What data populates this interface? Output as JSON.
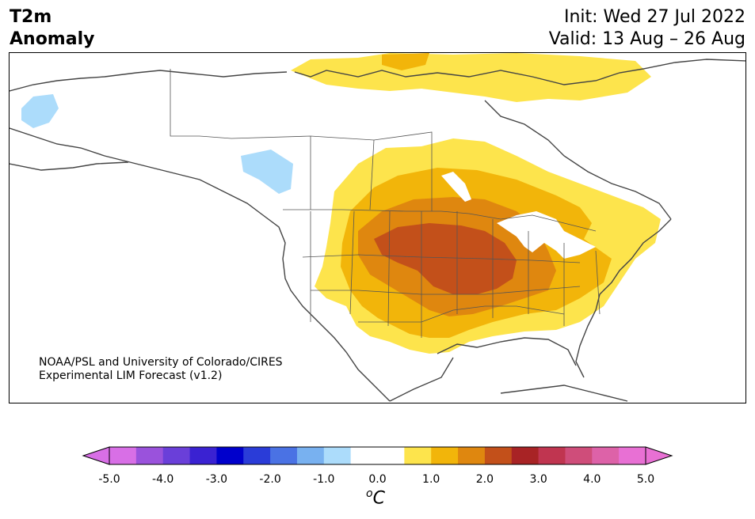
{
  "title": {
    "line1": "T2m",
    "line2": "Anomaly"
  },
  "init": "Init: Wed 27 Jul 2022",
  "valid": "Valid: 13 Aug – 26 Aug",
  "credit": {
    "line1": "NOAA/PSL and University of Colorado/CIRES",
    "line2": "Experimental LIM Forecast (v1.2)"
  },
  "colorbar": {
    "unit_sup": "o",
    "unit": "C",
    "ticks": [
      "-5.0",
      "-4.0",
      "-3.0",
      "-2.0",
      "-1.0",
      "0.0",
      "1.0",
      "2.0",
      "3.0",
      "4.0",
      "5.0"
    ],
    "colors": [
      "#d86fe6",
      "#9a52dc",
      "#6a3fd9",
      "#3a22d2",
      "#0000cc",
      "#2a3cd8",
      "#4a72e4",
      "#78b1f0",
      "#acdcfb",
      "#ffffff",
      "#ffffff",
      "#fde44c",
      "#f2b50a",
      "#df870f",
      "#c3501a",
      "#a82325",
      "#c03550",
      "#cf4d7a",
      "#dd62a8",
      "#e870d4"
    ],
    "under_color": "#d86fe6",
    "over_color": "#e870d4"
  }
}
